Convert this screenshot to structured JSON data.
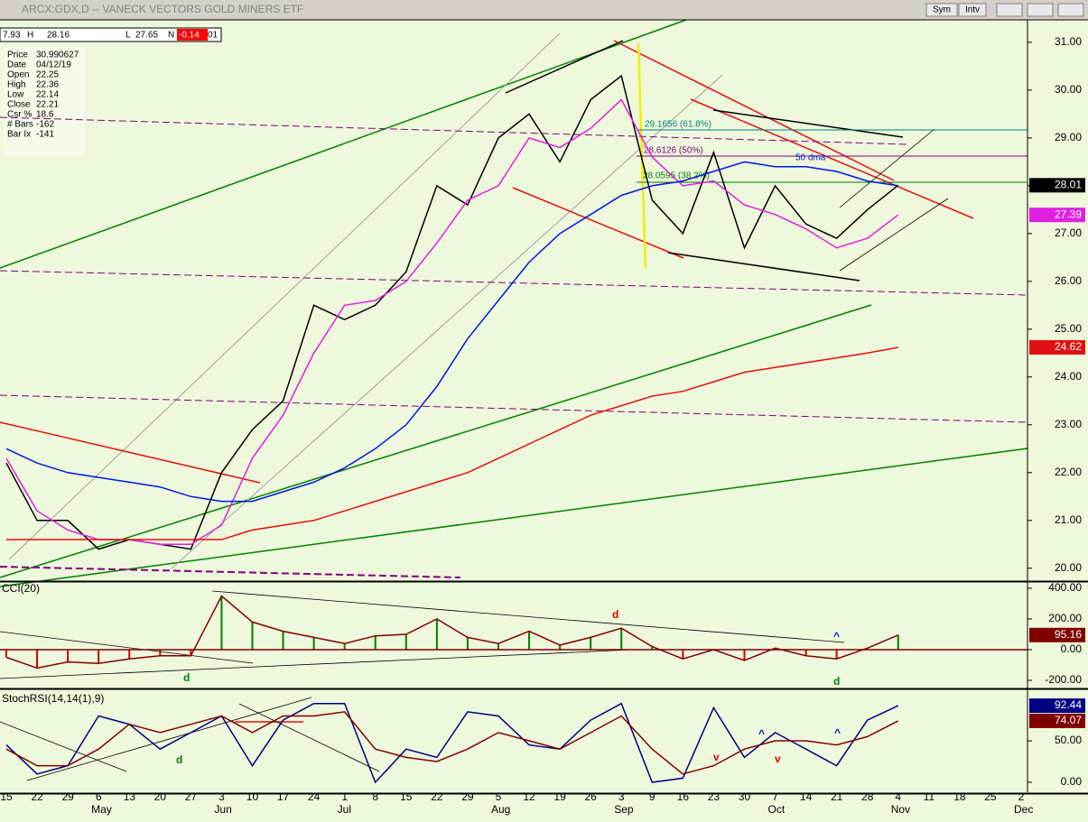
{
  "window": {
    "title": "ARCX:GDX,D -- VANECK VECTORS GOLD MINERS ETF",
    "buttons": [
      "Sym",
      "Intv"
    ]
  },
  "quote_bar": [
    "7.93",
    "H",
    "28.16",
    "L",
    "27.65",
    "N",
    "-0.14",
    "01"
  ],
  "info_box": [
    [
      "Price",
      "30.990627"
    ],
    [
      "Date",
      "04/12/19"
    ],
    [
      "Open",
      "22.25"
    ],
    [
      "High",
      "22.36"
    ],
    [
      "Low",
      "22.14"
    ],
    [
      "Close",
      "22.21"
    ],
    [
      "Csr %",
      "18.6"
    ],
    [
      "# Bars",
      "-162"
    ],
    [
      "Bar Ix",
      "-141"
    ]
  ],
  "chart_data": [
    {
      "type": "line",
      "categories": [
        "15",
        "22",
        "29",
        "6",
        "13",
        "20",
        "27",
        "3",
        "10",
        "17",
        "24",
        "1",
        "8",
        "15",
        "22",
        "29",
        "5",
        "12",
        "19",
        "26",
        "3",
        "9",
        "16",
        "23",
        "30",
        "7",
        "14",
        "21",
        "28",
        "4",
        "11",
        "18",
        "25",
        "2"
      ],
      "months": [
        "May",
        "Jun",
        "Jul",
        "Aug",
        "Sep",
        "Oct",
        "Nov",
        "Dec"
      ],
      "annotations": [
        "29.1656 (61.8%)",
        "28.6126 (50%)",
        "28.0595 (38.2%)",
        "50 dma"
      ],
      "ylim": [
        19.75,
        31.47
      ],
      "yticks": [
        {
          "value": 20,
          "label": "20.00"
        },
        {
          "value": 21,
          "label": "21.00"
        },
        {
          "value": 22,
          "label": "22.00"
        },
        {
          "value": 23,
          "label": "23.00"
        },
        {
          "value": 24,
          "label": "24.00"
        },
        {
          "value": 25,
          "label": "25.00"
        },
        {
          "value": 26,
          "label": "26.00"
        },
        {
          "value": 27,
          "label": "27.00"
        },
        {
          "value": 28,
          "label": "28.00"
        },
        {
          "value": 29,
          "label": "29.00"
        },
        {
          "value": 30,
          "label": "30.00"
        },
        {
          "value": 31,
          "label": "31.00"
        }
      ],
      "series": [
        {
          "name": "Close",
          "color": "#000000",
          "end_label": true,
          "values": [
            22.2,
            21.0,
            21.0,
            20.4,
            20.6,
            20.5,
            20.4,
            22.0,
            22.9,
            23.5,
            25.5,
            25.2,
            25.5,
            26.2,
            28.0,
            27.6,
            29.0,
            29.5,
            28.5,
            29.8,
            30.3,
            27.7,
            27.0,
            28.7,
            26.7,
            28.0,
            27.2,
            26.9,
            27.5,
            28.01,
            null,
            null,
            null,
            null
          ]
        },
        {
          "name": "10 dma",
          "color": "#e020e0",
          "end_label": true,
          "values": [
            22.3,
            21.2,
            20.8,
            20.6,
            20.6,
            20.5,
            20.5,
            20.9,
            22.3,
            23.2,
            24.5,
            25.5,
            25.6,
            26.0,
            26.8,
            27.7,
            28.0,
            29.0,
            28.8,
            29.2,
            29.8,
            28.6,
            28.0,
            28.1,
            27.6,
            27.4,
            27.1,
            26.7,
            26.9,
            27.39,
            null,
            null,
            null,
            null
          ]
        },
        {
          "name": "50 dma",
          "color": "#0018e0",
          "end_label": false,
          "values": [
            22.5,
            22.2,
            22.0,
            21.9,
            21.8,
            21.7,
            21.5,
            21.4,
            21.4,
            21.6,
            21.8,
            22.1,
            22.5,
            23.0,
            23.8,
            24.8,
            25.6,
            26.4,
            27.0,
            27.4,
            27.8,
            28.0,
            28.1,
            28.3,
            28.5,
            28.4,
            28.4,
            28.3,
            28.1,
            28.0,
            null,
            null,
            null,
            null
          ]
        },
        {
          "name": "200 dma",
          "color": "#e01010",
          "end_label": true,
          "values": [
            20.6,
            20.6,
            20.6,
            20.6,
            20.6,
            20.6,
            20.6,
            20.6,
            20.8,
            20.9,
            21.0,
            21.2,
            21.4,
            21.6,
            21.8,
            22.0,
            22.3,
            22.6,
            22.9,
            23.2,
            23.4,
            23.6,
            23.7,
            23.9,
            24.1,
            24.2,
            24.3,
            24.4,
            24.5,
            24.62,
            null,
            null,
            null,
            null
          ]
        }
      ]
    },
    {
      "type": "line",
      "title": "CCI(20)",
      "annotations": [
        "d",
        "d",
        "d",
        "^"
      ],
      "ylim": [
        -247,
        435
      ],
      "yticks": [
        {
          "value": -200,
          "label": "-200.00"
        },
        {
          "value": 0,
          "label": "0.00"
        },
        {
          "value": 200,
          "label": "200.00"
        },
        {
          "value": 400,
          "label": "400.00"
        }
      ],
      "series": [
        {
          "name": "CCI",
          "color": "#800000",
          "style": "histogram",
          "end_label": true,
          "values": [
            -50,
            -120,
            -80,
            -90,
            -60,
            -40,
            -40,
            350,
            180,
            120,
            80,
            40,
            90,
            100,
            200,
            80,
            40,
            120,
            30,
            80,
            140,
            20,
            -60,
            0,
            -70,
            10,
            -40,
            -60,
            10,
            95.16,
            null,
            null,
            null,
            null
          ]
        }
      ]
    },
    {
      "type": "line",
      "title": "StochRSI(14,14(1),9)",
      "annotations": [
        "d",
        "^",
        "^",
        "v",
        "v"
      ],
      "ylim": [
        -12,
        111
      ],
      "yticks": [
        {
          "value": 0,
          "label": "0.00"
        },
        {
          "value": 50,
          "label": "50.00"
        }
      ],
      "series": [
        {
          "name": "StochRSI",
          "color": "#000080",
          "end_label": true,
          "values": [
            45,
            10,
            20,
            80,
            70,
            40,
            60,
            80,
            20,
            75,
            95,
            95,
            0,
            40,
            30,
            85,
            80,
            45,
            40,
            75,
            95,
            0,
            5,
            90,
            30,
            60,
            40,
            20,
            75,
            92.44,
            null,
            null,
            null,
            null
          ]
        },
        {
          "name": "Signal",
          "color": "#800000",
          "end_label": true,
          "values": [
            40,
            20,
            20,
            40,
            70,
            60,
            70,
            80,
            60,
            80,
            80,
            85,
            40,
            30,
            25,
            40,
            60,
            50,
            40,
            60,
            80,
            40,
            10,
            20,
            40,
            50,
            50,
            45,
            55,
            74.07,
            null,
            null,
            null,
            null
          ]
        }
      ]
    }
  ]
}
